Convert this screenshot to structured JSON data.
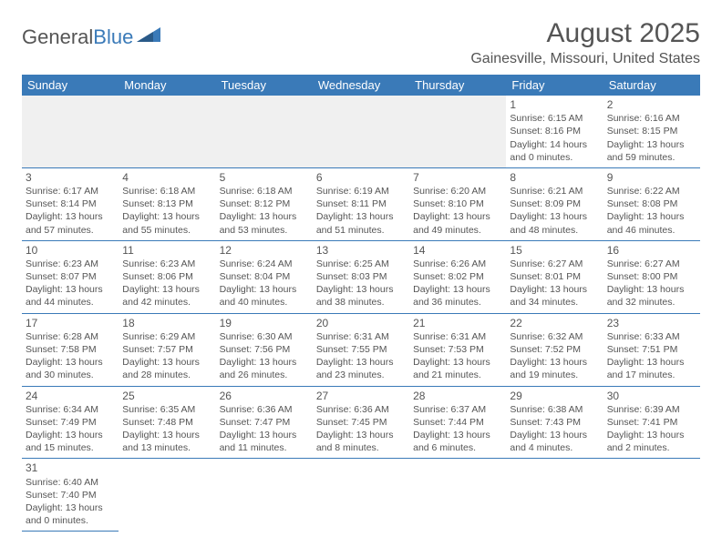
{
  "logo": {
    "text1": "General",
    "text2": "Blue"
  },
  "header": {
    "title": "August 2025",
    "location": "Gainesville, Missouri, United States"
  },
  "colors": {
    "header_bg": "#3a7ab8",
    "header_text": "#ffffff",
    "body_text": "#555555",
    "divider": "#3a7ab8",
    "empty_row_bg": "#f0f0f0"
  },
  "typography": {
    "title_size_pt": 22,
    "subtitle_size_pt": 12,
    "dayheader_size_pt": 10,
    "cell_size_pt": 8
  },
  "days": [
    "Sunday",
    "Monday",
    "Tuesday",
    "Wednesday",
    "Thursday",
    "Friday",
    "Saturday"
  ],
  "cells": [
    [
      null,
      null,
      null,
      null,
      null,
      {
        "n": "1",
        "sr": "Sunrise: 6:15 AM",
        "ss": "Sunset: 8:16 PM",
        "d1": "Daylight: 14 hours",
        "d2": "and 0 minutes."
      },
      {
        "n": "2",
        "sr": "Sunrise: 6:16 AM",
        "ss": "Sunset: 8:15 PM",
        "d1": "Daylight: 13 hours",
        "d2": "and 59 minutes."
      }
    ],
    [
      {
        "n": "3",
        "sr": "Sunrise: 6:17 AM",
        "ss": "Sunset: 8:14 PM",
        "d1": "Daylight: 13 hours",
        "d2": "and 57 minutes."
      },
      {
        "n": "4",
        "sr": "Sunrise: 6:18 AM",
        "ss": "Sunset: 8:13 PM",
        "d1": "Daylight: 13 hours",
        "d2": "and 55 minutes."
      },
      {
        "n": "5",
        "sr": "Sunrise: 6:18 AM",
        "ss": "Sunset: 8:12 PM",
        "d1": "Daylight: 13 hours",
        "d2": "and 53 minutes."
      },
      {
        "n": "6",
        "sr": "Sunrise: 6:19 AM",
        "ss": "Sunset: 8:11 PM",
        "d1": "Daylight: 13 hours",
        "d2": "and 51 minutes."
      },
      {
        "n": "7",
        "sr": "Sunrise: 6:20 AM",
        "ss": "Sunset: 8:10 PM",
        "d1": "Daylight: 13 hours",
        "d2": "and 49 minutes."
      },
      {
        "n": "8",
        "sr": "Sunrise: 6:21 AM",
        "ss": "Sunset: 8:09 PM",
        "d1": "Daylight: 13 hours",
        "d2": "and 48 minutes."
      },
      {
        "n": "9",
        "sr": "Sunrise: 6:22 AM",
        "ss": "Sunset: 8:08 PM",
        "d1": "Daylight: 13 hours",
        "d2": "and 46 minutes."
      }
    ],
    [
      {
        "n": "10",
        "sr": "Sunrise: 6:23 AM",
        "ss": "Sunset: 8:07 PM",
        "d1": "Daylight: 13 hours",
        "d2": "and 44 minutes."
      },
      {
        "n": "11",
        "sr": "Sunrise: 6:23 AM",
        "ss": "Sunset: 8:06 PM",
        "d1": "Daylight: 13 hours",
        "d2": "and 42 minutes."
      },
      {
        "n": "12",
        "sr": "Sunrise: 6:24 AM",
        "ss": "Sunset: 8:04 PM",
        "d1": "Daylight: 13 hours",
        "d2": "and 40 minutes."
      },
      {
        "n": "13",
        "sr": "Sunrise: 6:25 AM",
        "ss": "Sunset: 8:03 PM",
        "d1": "Daylight: 13 hours",
        "d2": "and 38 minutes."
      },
      {
        "n": "14",
        "sr": "Sunrise: 6:26 AM",
        "ss": "Sunset: 8:02 PM",
        "d1": "Daylight: 13 hours",
        "d2": "and 36 minutes."
      },
      {
        "n": "15",
        "sr": "Sunrise: 6:27 AM",
        "ss": "Sunset: 8:01 PM",
        "d1": "Daylight: 13 hours",
        "d2": "and 34 minutes."
      },
      {
        "n": "16",
        "sr": "Sunrise: 6:27 AM",
        "ss": "Sunset: 8:00 PM",
        "d1": "Daylight: 13 hours",
        "d2": "and 32 minutes."
      }
    ],
    [
      {
        "n": "17",
        "sr": "Sunrise: 6:28 AM",
        "ss": "Sunset: 7:58 PM",
        "d1": "Daylight: 13 hours",
        "d2": "and 30 minutes."
      },
      {
        "n": "18",
        "sr": "Sunrise: 6:29 AM",
        "ss": "Sunset: 7:57 PM",
        "d1": "Daylight: 13 hours",
        "d2": "and 28 minutes."
      },
      {
        "n": "19",
        "sr": "Sunrise: 6:30 AM",
        "ss": "Sunset: 7:56 PM",
        "d1": "Daylight: 13 hours",
        "d2": "and 26 minutes."
      },
      {
        "n": "20",
        "sr": "Sunrise: 6:31 AM",
        "ss": "Sunset: 7:55 PM",
        "d1": "Daylight: 13 hours",
        "d2": "and 23 minutes."
      },
      {
        "n": "21",
        "sr": "Sunrise: 6:31 AM",
        "ss": "Sunset: 7:53 PM",
        "d1": "Daylight: 13 hours",
        "d2": "and 21 minutes."
      },
      {
        "n": "22",
        "sr": "Sunrise: 6:32 AM",
        "ss": "Sunset: 7:52 PM",
        "d1": "Daylight: 13 hours",
        "d2": "and 19 minutes."
      },
      {
        "n": "23",
        "sr": "Sunrise: 6:33 AM",
        "ss": "Sunset: 7:51 PM",
        "d1": "Daylight: 13 hours",
        "d2": "and 17 minutes."
      }
    ],
    [
      {
        "n": "24",
        "sr": "Sunrise: 6:34 AM",
        "ss": "Sunset: 7:49 PM",
        "d1": "Daylight: 13 hours",
        "d2": "and 15 minutes."
      },
      {
        "n": "25",
        "sr": "Sunrise: 6:35 AM",
        "ss": "Sunset: 7:48 PM",
        "d1": "Daylight: 13 hours",
        "d2": "and 13 minutes."
      },
      {
        "n": "26",
        "sr": "Sunrise: 6:36 AM",
        "ss": "Sunset: 7:47 PM",
        "d1": "Daylight: 13 hours",
        "d2": "and 11 minutes."
      },
      {
        "n": "27",
        "sr": "Sunrise: 6:36 AM",
        "ss": "Sunset: 7:45 PM",
        "d1": "Daylight: 13 hours",
        "d2": "and 8 minutes."
      },
      {
        "n": "28",
        "sr": "Sunrise: 6:37 AM",
        "ss": "Sunset: 7:44 PM",
        "d1": "Daylight: 13 hours",
        "d2": "and 6 minutes."
      },
      {
        "n": "29",
        "sr": "Sunrise: 6:38 AM",
        "ss": "Sunset: 7:43 PM",
        "d1": "Daylight: 13 hours",
        "d2": "and 4 minutes."
      },
      {
        "n": "30",
        "sr": "Sunrise: 6:39 AM",
        "ss": "Sunset: 7:41 PM",
        "d1": "Daylight: 13 hours",
        "d2": "and 2 minutes."
      }
    ],
    [
      {
        "n": "31",
        "sr": "Sunrise: 6:40 AM",
        "ss": "Sunset: 7:40 PM",
        "d1": "Daylight: 13 hours",
        "d2": "and 0 minutes."
      },
      null,
      null,
      null,
      null,
      null,
      null
    ]
  ]
}
